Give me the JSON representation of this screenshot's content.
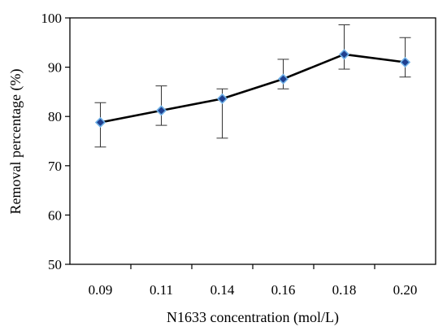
{
  "chart_data": {
    "type": "line",
    "title": "",
    "xlabel": "N1633 concentration (mol/L)",
    "ylabel": "Removal percentage (%)",
    "categories": [
      "0.09",
      "0.11",
      "0.14",
      "0.16",
      "0.18",
      "0.20"
    ],
    "yticks": [
      50,
      60,
      70,
      80,
      90,
      100
    ],
    "ylim": [
      50,
      100
    ],
    "grid": false,
    "legend": "none",
    "series": [
      {
        "values": [
          78.8,
          81.2,
          83.6,
          87.6,
          92.6,
          91.0
        ],
        "error_upper": [
          82.8,
          86.2,
          85.6,
          91.6,
          98.6,
          96.0
        ],
        "error_lower": [
          73.8,
          78.2,
          75.6,
          85.6,
          89.6,
          88.0
        ],
        "line_color": "#000000",
        "marker_fill": "#1f3f8f",
        "marker_edge": "#6fb0e6",
        "marker": "diamond"
      }
    ]
  }
}
